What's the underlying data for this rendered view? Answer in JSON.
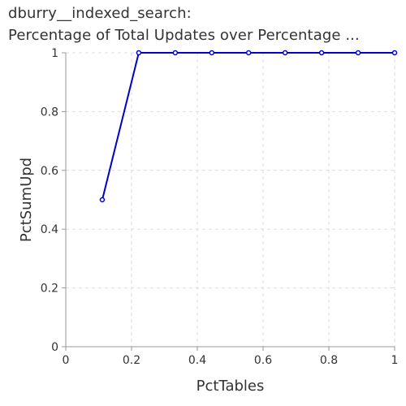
{
  "title_line1": "dburry__indexed_search:",
  "title_line2": "Percentage of Total Updates over Percentage ...",
  "chart_data": {
    "type": "line",
    "title": "dburry__indexed_search: Percentage of Total Updates over Percentage ...",
    "xlabel": "PctTables",
    "ylabel": "PctSumUpd",
    "xlim": [
      0,
      1
    ],
    "ylim": [
      0,
      1
    ],
    "xticks": [
      0,
      0.2,
      0.4,
      0.6,
      0.8,
      1
    ],
    "xtick_labels": [
      "0",
      "0.2",
      "0.4",
      "0.6",
      "0.8",
      "1"
    ],
    "yticks": [
      0,
      0.2,
      0.4,
      0.6,
      0.8,
      1
    ],
    "ytick_labels": [
      "0",
      "0.2",
      "0.4",
      "0.6",
      "0.8",
      "1"
    ],
    "grid": true,
    "series": [
      {
        "color": "#0000cc",
        "x": [
          0.111,
          0.222,
          0.333,
          0.444,
          0.556,
          0.667,
          0.778,
          0.889,
          1.0
        ],
        "y": [
          0.5,
          1,
          1,
          1,
          1,
          1,
          1,
          1,
          1
        ]
      }
    ]
  }
}
